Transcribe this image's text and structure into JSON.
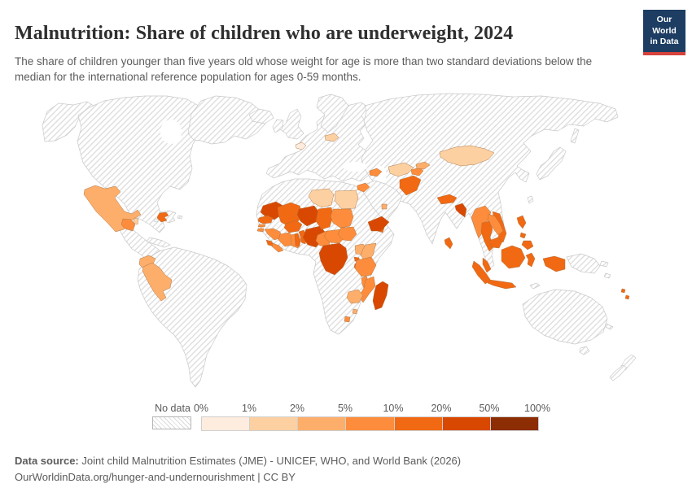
{
  "header": {
    "title": "Malnutrition: Share of children who are underweight, 2024",
    "subtitle": "The share of children younger than five years old whose weight for age is more than two standard deviations below the median for the international reference population for ages 0-59 months.",
    "logo": {
      "line1": "Our World",
      "line2": "in Data",
      "bg_color": "#1d3d63",
      "accent_color": "#d6423c"
    }
  },
  "legend": {
    "no_data_label": "No data",
    "ticks": [
      "0%",
      "1%",
      "2%",
      "5%",
      "10%",
      "20%",
      "50%",
      "100%"
    ],
    "colors": [
      "#feedde",
      "#fdd0a2",
      "#fdae6b",
      "#fd8d3c",
      "#f16913",
      "#d94801",
      "#8c2d04"
    ]
  },
  "footer": {
    "source_label": "Data source:",
    "source_text": "Joint child Malnutrition Estimates (JME) - UNICEF, WHO, and World Bank (2026)",
    "note_text": "OurWorldinData.org/hunger-and-undernourishment | CC BY"
  },
  "chart_data": {
    "type": "choropleth-map",
    "title": "Malnutrition: Share of children who are underweight, 2024",
    "unit": "share of children under five who are underweight (weight-for-age < -2 SD)",
    "legend_position": "bottom",
    "no_data_style": "gray diagonal hatch",
    "bins": [
      {
        "range": "0-1%",
        "color": "#feedde"
      },
      {
        "range": "1-2%",
        "color": "#fdd0a2"
      },
      {
        "range": "2-5%",
        "color": "#fdae6b"
      },
      {
        "range": "5-10%",
        "color": "#fd8d3c"
      },
      {
        "range": "10-20%",
        "color": "#f16913"
      },
      {
        "range": "20-50%",
        "color": "#d94801"
      },
      {
        "range": "50-100%",
        "color": "#8c2d04"
      }
    ],
    "regions": [
      {
        "name": "Mexico",
        "bin": "2-5%",
        "color": "#fdae6b"
      },
      {
        "name": "Belize",
        "bin": "1-2%",
        "color": "#fdd0a2"
      },
      {
        "name": "Guatemala",
        "bin": "5-10%",
        "color": "#fd8d3c"
      },
      {
        "name": "Haiti",
        "bin": "10-20%",
        "color": "#f16913"
      },
      {
        "name": "Ecuador",
        "bin": "2-5%",
        "color": "#fdae6b"
      },
      {
        "name": "Peru",
        "bin": "2-5%",
        "color": "#fdae6b"
      },
      {
        "name": "Belgium",
        "bin": "0-1%",
        "color": "#feedde"
      },
      {
        "name": "Lithuania",
        "bin": "1-2%",
        "color": "#fdd0a2"
      },
      {
        "name": "Libya",
        "bin": "1-2%",
        "color": "#fdd0a2"
      },
      {
        "name": "Egypt",
        "bin": "1-2%",
        "color": "#fdd0a2"
      },
      {
        "name": "Mauritania",
        "bin": "20-50%",
        "color": "#d94801"
      },
      {
        "name": "Senegal",
        "bin": "10-20%",
        "color": "#f16913"
      },
      {
        "name": "Gambia",
        "bin": "5-10%",
        "color": "#fd8d3c"
      },
      {
        "name": "Guinea-Bissau",
        "bin": "5-10%",
        "color": "#fd8d3c"
      },
      {
        "name": "Guinea",
        "bin": "5-10%",
        "color": "#fd8d3c"
      },
      {
        "name": "Sierra Leone",
        "bin": "10-20%",
        "color": "#f16913"
      },
      {
        "name": "Liberia",
        "bin": "5-10%",
        "color": "#fd8d3c"
      },
      {
        "name": "Côte d'Ivoire",
        "bin": "5-10%",
        "color": "#fd8d3c"
      },
      {
        "name": "Mali",
        "bin": "10-20%",
        "color": "#f16913"
      },
      {
        "name": "Burkina Faso",
        "bin": "10-20%",
        "color": "#f16913"
      },
      {
        "name": "Ghana",
        "bin": "5-10%",
        "color": "#fd8d3c"
      },
      {
        "name": "Togo",
        "bin": "10-20%",
        "color": "#f16913"
      },
      {
        "name": "Benin",
        "bin": "10-20%",
        "color": "#f16913"
      },
      {
        "name": "Niger",
        "bin": "20-50%",
        "color": "#d94801"
      },
      {
        "name": "Nigeria",
        "bin": "20-50%",
        "color": "#d94801"
      },
      {
        "name": "Cameroon",
        "bin": "5-10%",
        "color": "#fd8d3c"
      },
      {
        "name": "Chad",
        "bin": "10-20%",
        "color": "#f16913"
      },
      {
        "name": "Central African Republic",
        "bin": "5-10%",
        "color": "#fd8d3c"
      },
      {
        "name": "Sudan",
        "bin": "5-10%",
        "color": "#fd8d3c"
      },
      {
        "name": "South Sudan",
        "bin": "5-10%",
        "color": "#fd8d3c"
      },
      {
        "name": "Djibouti",
        "bin": "10-20%",
        "color": "#f16913"
      },
      {
        "name": "Uganda",
        "bin": "2-5%",
        "color": "#fdae6b"
      },
      {
        "name": "Kenya",
        "bin": "2-5%",
        "color": "#fdae6b"
      },
      {
        "name": "Rwanda",
        "bin": "10-20%",
        "color": "#f16913"
      },
      {
        "name": "Burundi",
        "bin": "10-20%",
        "color": "#f16913"
      },
      {
        "name": "Tanzania",
        "bin": "5-10%",
        "color": "#fd8d3c"
      },
      {
        "name": "Democratic Republic of Congo",
        "bin": "20-50%",
        "color": "#d94801"
      },
      {
        "name": "Malawi",
        "bin": "5-10%",
        "color": "#fd8d3c"
      },
      {
        "name": "Mozambique",
        "bin": "5-10%",
        "color": "#fd8d3c"
      },
      {
        "name": "Zimbabwe",
        "bin": "2-5%",
        "color": "#fdae6b"
      },
      {
        "name": "Madagascar",
        "bin": "20-50%",
        "color": "#d94801"
      },
      {
        "name": "Lesotho",
        "bin": "5-10%",
        "color": "#fd8d3c"
      },
      {
        "name": "Eswatini",
        "bin": "2-5%",
        "color": "#fdae6b"
      },
      {
        "name": "Yemen",
        "bin": "20-50%",
        "color": "#d94801"
      },
      {
        "name": "Syria",
        "bin": "5-10%",
        "color": "#fd8d3c"
      },
      {
        "name": "Azerbaijan",
        "bin": "5-10%",
        "color": "#fd8d3c"
      },
      {
        "name": "Kuwait",
        "bin": "2-5%",
        "color": "#fdae6b"
      },
      {
        "name": "Uzbekistan",
        "bin": "1-2%",
        "color": "#fdd0a2"
      },
      {
        "name": "Kyrgyzstan",
        "bin": "2-5%",
        "color": "#fdae6b"
      },
      {
        "name": "Tajikistan",
        "bin": "5-10%",
        "color": "#fd8d3c"
      },
      {
        "name": "Afghanistan",
        "bin": "10-20%",
        "color": "#f16913"
      },
      {
        "name": "Nepal",
        "bin": "10-20%",
        "color": "#f16913"
      },
      {
        "name": "Bangladesh",
        "bin": "20-50%",
        "color": "#d94801"
      },
      {
        "name": "Sri Lanka",
        "bin": "10-20%",
        "color": "#f16913"
      },
      {
        "name": "Mongolia",
        "bin": "1-2%",
        "color": "#fdd0a2"
      },
      {
        "name": "Myanmar",
        "bin": "5-10%",
        "color": "#fd8d3c"
      },
      {
        "name": "Laos",
        "bin": "5-10%",
        "color": "#fd8d3c"
      },
      {
        "name": "Thailand",
        "bin": "10-20%",
        "color": "#f16913"
      },
      {
        "name": "Cambodia",
        "bin": "10-20%",
        "color": "#f16913"
      },
      {
        "name": "Vietnam",
        "bin": "10-20%",
        "color": "#f16913"
      },
      {
        "name": "Malaysia",
        "bin": "10-20%",
        "color": "#f16913"
      },
      {
        "name": "Indonesia",
        "bin": "10-20%",
        "color": "#f16913"
      },
      {
        "name": "Philippines",
        "bin": "10-20%",
        "color": "#f16913"
      },
      {
        "name": "Vanuatu",
        "bin": "10-20%",
        "color": "#f16913"
      }
    ],
    "no_data_regions": [
      "United States",
      "Canada",
      "Greenland",
      "Cuba",
      "Dominican Republic",
      "Honduras",
      "Nicaragua",
      "Costa Rica",
      "Panama",
      "Colombia",
      "Venezuela",
      "Guyana",
      "Suriname",
      "Brazil",
      "Bolivia",
      "Paraguay",
      "Chile",
      "Argentina",
      "Uruguay",
      "most of Europe",
      "Russia",
      "Turkey",
      "Iraq",
      "Iran",
      "Saudi Arabia",
      "Oman",
      "Kazakhstan",
      "Turkmenistan",
      "Pakistan",
      "India",
      "China",
      "Japan",
      "North Korea",
      "South Korea",
      "Morocco",
      "Algeria",
      "Tunisia",
      "Western Sahara",
      "Eritrea",
      "Ethiopia",
      "Somalia",
      "Gabon",
      "Republic of Congo",
      "Angola",
      "Zambia",
      "Namibia",
      "Botswana",
      "South Africa",
      "Papua New Guinea",
      "Timor",
      "Solomon Islands",
      "Australia",
      "New Zealand"
    ]
  }
}
